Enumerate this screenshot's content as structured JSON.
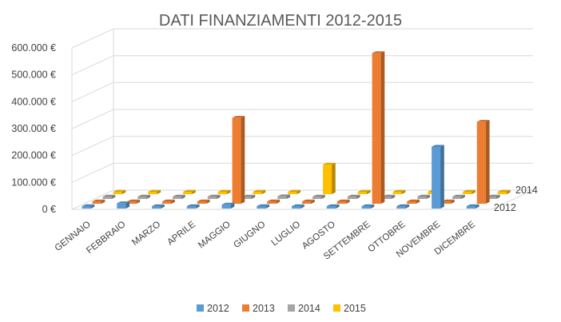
{
  "chart_data": {
    "type": "bar",
    "subtype": "3d-column",
    "title": "DATI FINANZIAMENTI 2012-2015",
    "categories": [
      "GENNAIO",
      "FEBBRAIO",
      "MARZO",
      "APRILE",
      "MAGGIO",
      "GIUGNO",
      "LUGLIO",
      "AGOSTO",
      "SETTEMBRE",
      "OTTOBRE",
      "NOVEMBRE",
      "DICEMBRE"
    ],
    "series": [
      {
        "name": "2012",
        "color": "#5b9bd5",
        "values": [
          0,
          20000,
          0,
          0,
          15000,
          0,
          0,
          0,
          0,
          0,
          230000,
          0
        ]
      },
      {
        "name": "2013",
        "color": "#ed7d31",
        "values": [
          0,
          0,
          0,
          0,
          320000,
          0,
          0,
          0,
          560000,
          0,
          0,
          305000
        ]
      },
      {
        "name": "2014",
        "color": "#a5a5a5",
        "values": [
          0,
          0,
          0,
          0,
          0,
          10000,
          0,
          0,
          0,
          0,
          0,
          0
        ]
      },
      {
        "name": "2015",
        "color": "#ffc000",
        "values": [
          0,
          0,
          0,
          0,
          0,
          0,
          110000,
          0,
          0,
          0,
          0,
          0
        ]
      }
    ],
    "y_ticks": [
      "0 €",
      "100.000 €",
      "200.000 €",
      "300.000 €",
      "400.000 €",
      "500.000 €",
      "600.000 €"
    ],
    "y_tick_values": [
      0,
      100000,
      200000,
      300000,
      400000,
      500000,
      600000
    ],
    "ylim": [
      0,
      600000
    ],
    "depth_labels": [
      "2012",
      "2014"
    ],
    "grid": true,
    "legend": "bottom"
  }
}
